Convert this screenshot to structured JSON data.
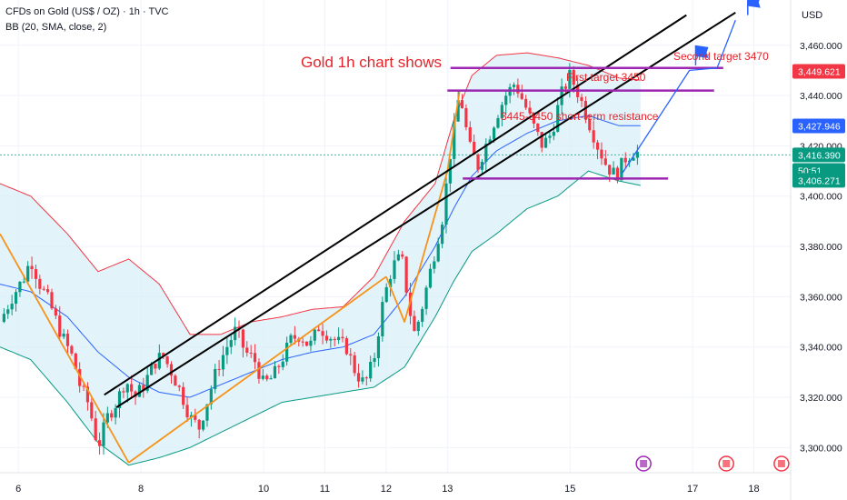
{
  "header": {
    "symbol": "CFDs on Gold (US$ / OZ) · 1h · TVC",
    "indicator": "BB (20, SMA, close, 2)",
    "currency": "USD"
  },
  "colors": {
    "up": "#089981",
    "down": "#f23645",
    "bb_upper": "#f23645",
    "bb_lower": "#089981",
    "bb_basis": "#2962ff",
    "bb_fill": "#d6eef8",
    "trend_orange": "#f7931a",
    "trend_black": "#000000",
    "purple": "#9c27b0",
    "projection_blue": "#2962ff",
    "annotation_red": "#e3242b"
  },
  "chart_data": {
    "type": "candlestick",
    "title": "Gold 1h chart shows",
    "ylim": [
      3290,
      3478
    ],
    "y_ticks": [
      3300,
      3320,
      3340,
      3360,
      3380,
      3400,
      3420,
      3440,
      3460
    ],
    "y_tick_labels": [
      "3,300.000",
      "3,320.000",
      "3,340.000",
      "3,360.000",
      "3,380.000",
      "3,400.000",
      "3,420.000",
      "3,440.000",
      "3,460.000"
    ],
    "x_ticks": [
      {
        "label": "6",
        "t": 6
      },
      {
        "label": "8",
        "t": 8
      },
      {
        "label": "10",
        "t": 10
      },
      {
        "label": "11",
        "t": 11
      },
      {
        "label": "12",
        "t": 12
      },
      {
        "label": "13",
        "t": 13
      },
      {
        "label": "15",
        "t": 15
      },
      {
        "label": "17",
        "t": 17
      },
      {
        "label": "18",
        "t": 18
      }
    ],
    "price_path": [
      [
        5.7,
        3350
      ],
      [
        5.9,
        3360
      ],
      [
        6.1,
        3368
      ],
      [
        6.2,
        3375
      ],
      [
        6.35,
        3365
      ],
      [
        6.5,
        3358
      ],
      [
        6.7,
        3345
      ],
      [
        6.9,
        3335
      ],
      [
        7.0,
        3325
      ],
      [
        7.15,
        3317
      ],
      [
        7.3,
        3300
      ],
      [
        7.45,
        3312
      ],
      [
        7.6,
        3318
      ],
      [
        7.75,
        3327
      ],
      [
        7.9,
        3320
      ],
      [
        8.05,
        3325
      ],
      [
        8.2,
        3333
      ],
      [
        8.35,
        3337
      ],
      [
        8.5,
        3330
      ],
      [
        8.65,
        3322
      ],
      [
        8.8,
        3312
      ],
      [
        8.95,
        3308
      ],
      [
        9.1,
        3320
      ],
      [
        9.25,
        3332
      ],
      [
        9.4,
        3340
      ],
      [
        9.55,
        3347
      ],
      [
        9.7,
        3338
      ],
      [
        9.85,
        3335
      ],
      [
        10.0,
        3325
      ],
      [
        10.15,
        3328
      ],
      [
        10.3,
        3335
      ],
      [
        10.45,
        3343
      ],
      [
        10.6,
        3345
      ],
      [
        10.75,
        3340
      ],
      [
        10.9,
        3348
      ],
      [
        11.05,
        3345
      ],
      [
        11.2,
        3342
      ],
      [
        11.35,
        3340
      ],
      [
        11.5,
        3330
      ],
      [
        11.65,
        3325
      ],
      [
        11.8,
        3335
      ],
      [
        11.95,
        3358
      ],
      [
        12.1,
        3372
      ],
      [
        12.25,
        3376
      ],
      [
        12.35,
        3360
      ],
      [
        12.45,
        3345
      ],
      [
        12.55,
        3352
      ],
      [
        12.7,
        3368
      ],
      [
        12.85,
        3384
      ],
      [
        12.95,
        3395
      ],
      [
        13.0,
        3410
      ],
      [
        13.1,
        3425
      ],
      [
        13.2,
        3442
      ],
      [
        13.35,
        3420
      ],
      [
        13.5,
        3412
      ],
      [
        13.65,
        3422
      ],
      [
        13.8,
        3432
      ],
      [
        13.95,
        3440
      ],
      [
        14.1,
        3445
      ],
      [
        14.25,
        3437
      ],
      [
        14.4,
        3428
      ],
      [
        14.55,
        3420
      ],
      [
        14.7,
        3425
      ],
      [
        14.85,
        3440
      ],
      [
        15.0,
        3448
      ],
      [
        15.15,
        3440
      ],
      [
        15.3,
        3430
      ],
      [
        15.45,
        3420
      ],
      [
        15.6,
        3412
      ],
      [
        15.75,
        3408
      ],
      [
        15.9,
        3415
      ],
      [
        16.05,
        3418
      ],
      [
        16.15,
        3416.39
      ]
    ],
    "bb_upper": [
      [
        5.7,
        3405
      ],
      [
        6.2,
        3400
      ],
      [
        6.8,
        3385
      ],
      [
        7.3,
        3370
      ],
      [
        7.8,
        3375
      ],
      [
        8.3,
        3365
      ],
      [
        8.8,
        3345
      ],
      [
        9.3,
        3345
      ],
      [
        9.8,
        3350
      ],
      [
        10.3,
        3352
      ],
      [
        10.8,
        3355
      ],
      [
        11.3,
        3356
      ],
      [
        11.8,
        3368
      ],
      [
        12.3,
        3390
      ],
      [
        12.8,
        3405
      ],
      [
        13.1,
        3430
      ],
      [
        13.4,
        3448
      ],
      [
        13.8,
        3456
      ],
      [
        14.3,
        3457
      ],
      [
        14.8,
        3455
      ],
      [
        15.3,
        3452
      ],
      [
        15.8,
        3447
      ],
      [
        16.2,
        3446
      ]
    ],
    "bb_basis": [
      [
        5.7,
        3365
      ],
      [
        6.2,
        3362
      ],
      [
        6.8,
        3352
      ],
      [
        7.3,
        3338
      ],
      [
        7.8,
        3328
      ],
      [
        8.3,
        3322
      ],
      [
        8.8,
        3320
      ],
      [
        9.3,
        3325
      ],
      [
        9.8,
        3330
      ],
      [
        10.3,
        3335
      ],
      [
        10.8,
        3338
      ],
      [
        11.3,
        3340
      ],
      [
        11.8,
        3345
      ],
      [
        12.3,
        3360
      ],
      [
        12.8,
        3380
      ],
      [
        13.1,
        3395
      ],
      [
        13.4,
        3408
      ],
      [
        13.8,
        3418
      ],
      [
        14.3,
        3425
      ],
      [
        14.8,
        3430
      ],
      [
        15.3,
        3432
      ],
      [
        15.8,
        3428
      ],
      [
        16.2,
        3428
      ]
    ],
    "bb_lower": [
      [
        5.7,
        3340
      ],
      [
        6.2,
        3335
      ],
      [
        6.8,
        3318
      ],
      [
        7.3,
        3302
      ],
      [
        7.8,
        3293
      ],
      [
        8.3,
        3296
      ],
      [
        8.8,
        3300
      ],
      [
        9.3,
        3306
      ],
      [
        9.8,
        3312
      ],
      [
        10.3,
        3318
      ],
      [
        10.8,
        3320
      ],
      [
        11.3,
        3322
      ],
      [
        11.8,
        3324
      ],
      [
        12.3,
        3332
      ],
      [
        12.8,
        3352
      ],
      [
        13.1,
        3366
      ],
      [
        13.4,
        3378
      ],
      [
        13.8,
        3385
      ],
      [
        14.3,
        3395
      ],
      [
        14.8,
        3400
      ],
      [
        15.3,
        3410
      ],
      [
        15.8,
        3406
      ],
      [
        16.2,
        3404
      ]
    ],
    "trendlines": [
      {
        "kind": "orange",
        "points": [
          [
            5.7,
            3385
          ],
          [
            7.8,
            3294
          ]
        ]
      },
      {
        "kind": "orange",
        "points": [
          [
            7.8,
            3294
          ],
          [
            12.0,
            3368
          ]
        ]
      },
      {
        "kind": "orange",
        "points": [
          [
            12.0,
            3368
          ],
          [
            12.3,
            3350
          ],
          [
            13.0,
            3410
          ],
          [
            13.2,
            3442
          ]
        ]
      },
      {
        "kind": "black",
        "points": [
          [
            7.4,
            3321
          ],
          [
            16.9,
            3472
          ]
        ]
      },
      {
        "kind": "black",
        "points": [
          [
            7.6,
            3316
          ],
          [
            17.7,
            3473
          ]
        ]
      },
      {
        "kind": "purple",
        "points": [
          [
            13.05,
            3451
          ],
          [
            17.5,
            3451
          ]
        ]
      },
      {
        "kind": "purple",
        "points": [
          [
            13.0,
            3442
          ],
          [
            17.35,
            3442
          ]
        ]
      },
      {
        "kind": "purple",
        "points": [
          [
            13.25,
            3407
          ],
          [
            16.6,
            3407
          ]
        ]
      },
      {
        "kind": "blue",
        "points": [
          [
            15.85,
            3409
          ],
          [
            16.95,
            3450
          ],
          [
            17.4,
            3451
          ],
          [
            17.7,
            3470
          ]
        ]
      }
    ],
    "flags": [
      {
        "t": 17.05,
        "price": 3452
      },
      {
        "t": 17.9,
        "price": 3472
      }
    ],
    "annotations": [
      {
        "id": "t1",
        "text": "First target 3450"
      },
      {
        "id": "t2",
        "text": "Second target 3470"
      },
      {
        "id": "res",
        "text": "3445-3450 short-term resistance"
      }
    ],
    "price_labels": [
      {
        "text": "3,449.621",
        "price": 3449.621,
        "color": "#f23645"
      },
      {
        "text": "3,427.946",
        "price": 3427.946,
        "color": "#2962ff"
      },
      {
        "text": "3,416.390",
        "price": 3416.39,
        "color": "#089981"
      },
      {
        "text": "50:51",
        "price": 3410.2,
        "color": "#089981"
      },
      {
        "text": "3,406.271",
        "price": 3406.271,
        "color": "#089981"
      }
    ],
    "dashed_level": 3416.39
  }
}
